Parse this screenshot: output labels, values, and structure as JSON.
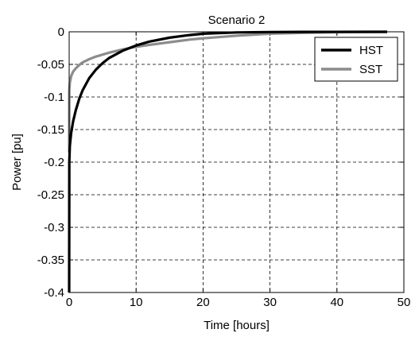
{
  "chart_data": {
    "type": "line",
    "title": "Scenario 2",
    "xlabel": "Time [hours]",
    "ylabel": "Power [pu]",
    "xlim": [
      0,
      50
    ],
    "ylim": [
      -0.4,
      0
    ],
    "x_ticks": [
      0,
      10,
      20,
      30,
      40,
      50
    ],
    "y_ticks": [
      0,
      -0.05,
      -0.1,
      -0.15,
      -0.2,
      -0.25,
      -0.3,
      -0.35,
      -0.4
    ],
    "x_tick_labels": [
      "0",
      "10",
      "20",
      "30",
      "40",
      "50"
    ],
    "y_tick_labels": [
      "0",
      "-0.05",
      "-0.1",
      "-0.15",
      "-0.2",
      "-0.25",
      "-0.3",
      "-0.35",
      "-0.4"
    ],
    "grid": true,
    "legend_position": "top-right",
    "series": [
      {
        "name": "HST",
        "color": "#000000",
        "x": [
          0,
          0.02,
          0.1,
          0.3,
          0.6,
          1,
          1.5,
          2,
          3,
          4,
          5,
          6,
          8,
          10,
          12,
          15,
          18,
          20,
          25,
          30,
          35,
          40,
          45,
          47.5
        ],
        "y": [
          -0.4,
          -0.2,
          -0.175,
          -0.155,
          -0.137,
          -0.12,
          -0.103,
          -0.09,
          -0.071,
          -0.058,
          -0.048,
          -0.04,
          -0.029,
          -0.021,
          -0.015,
          -0.009,
          -0.005,
          -0.003,
          -0.001,
          -0.0004,
          -0.0002,
          -0.0001,
          0,
          0
        ]
      },
      {
        "name": "SST",
        "color": "#8c8c8c",
        "x": [
          0,
          0.02,
          0.1,
          0.3,
          0.6,
          1,
          1.5,
          2,
          3,
          4,
          5,
          6,
          8,
          10,
          12,
          15,
          18,
          20,
          25,
          30,
          35,
          40,
          45,
          47.5
        ],
        "y": [
          -0.185,
          -0.09,
          -0.078,
          -0.068,
          -0.061,
          -0.056,
          -0.051,
          -0.047,
          -0.042,
          -0.038,
          -0.035,
          -0.032,
          -0.027,
          -0.023,
          -0.02,
          -0.016,
          -0.012,
          -0.01,
          -0.006,
          -0.003,
          -0.0015,
          -0.0007,
          -0.0003,
          -0.0002
        ]
      }
    ]
  }
}
